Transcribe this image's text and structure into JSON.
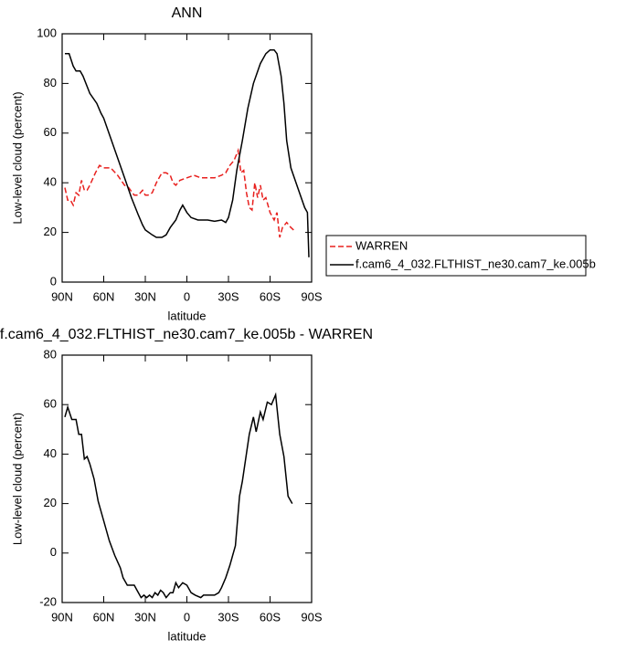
{
  "chart_data": [
    {
      "type": "line",
      "title": "ANN",
      "x_label": "latitude",
      "y_label": "Low-level cloud (percent)",
      "xlim": [
        90,
        -90
      ],
      "ylim": [
        0,
        100
      ],
      "xticks": [
        {
          "value": 90,
          "label": "90N"
        },
        {
          "value": 60,
          "label": "60N"
        },
        {
          "value": 30,
          "label": "30N"
        },
        0,
        {
          "value": -30,
          "label": "30S"
        },
        {
          "value": -60,
          "label": "60S"
        },
        {
          "value": -90,
          "label": "90S"
        }
      ],
      "yticks": [
        0,
        20,
        40,
        60,
        80,
        100
      ],
      "series": [
        {
          "name": "WARREN",
          "color": "#e8201e",
          "dashed": true,
          "x": [
            88,
            86,
            84,
            82,
            80,
            78,
            76,
            74,
            72,
            70,
            66,
            63,
            60,
            55,
            50,
            45,
            42,
            38,
            35,
            32,
            30,
            28,
            25,
            22,
            18,
            15,
            12,
            10,
            8,
            5,
            0,
            -5,
            -10,
            -15,
            -20,
            -25,
            -28,
            -31,
            -34,
            -37,
            -39,
            -41,
            -43,
            -45,
            -47,
            -49,
            -51,
            -53,
            -55,
            -57,
            -60,
            -63,
            -65,
            -67,
            -69,
            -72,
            -75,
            -77
          ],
          "values": [
            38,
            33,
            33,
            31,
            36,
            35,
            41,
            37,
            37,
            39,
            44,
            47,
            46,
            46,
            43,
            39,
            38,
            35,
            35,
            37,
            35,
            35,
            36,
            40,
            44,
            44,
            43,
            40,
            39,
            41,
            42,
            43,
            42,
            42,
            42,
            43,
            44,
            47,
            49,
            53,
            44,
            45,
            36,
            30,
            29,
            40,
            34,
            39,
            33,
            34,
            28,
            25,
            28,
            18,
            22,
            24,
            22,
            21
          ]
        },
        {
          "name": "f.cam6_4_032.FLTHIST_ne30.cam7_ke.005b",
          "color": "#000000",
          "dashed": false,
          "x": [
            88,
            85,
            82,
            80,
            77,
            75,
            70,
            65,
            62,
            60,
            55,
            50,
            45,
            40,
            35,
            32,
            30,
            25,
            22,
            18,
            15,
            12,
            8,
            5,
            3,
            0,
            -3,
            -8,
            -15,
            -20,
            -25,
            -28,
            -30,
            -33,
            -36,
            -40,
            -44,
            -48,
            -53,
            -57,
            -60,
            -63,
            -65,
            -68,
            -70,
            -72,
            -75,
            -80,
            -85,
            -87,
            -88
          ],
          "values": [
            92,
            92,
            87,
            85,
            85,
            83,
            76,
            72,
            68,
            66,
            58,
            50,
            42,
            34,
            27,
            23,
            21,
            19,
            18,
            18,
            19,
            22,
            25,
            29,
            31,
            28,
            26,
            25,
            25,
            24.5,
            25,
            24,
            26,
            33,
            45,
            57,
            70,
            80,
            88,
            92,
            93.5,
            93.5,
            92,
            83,
            72,
            57,
            46,
            38,
            30,
            28,
            10
          ]
        }
      ]
    },
    {
      "type": "line",
      "title": "f.cam6_4_032.FLTHIST_ne30.cam7_ke.005b - WARREN",
      "x_label": "latitude",
      "y_label": "Low-level cloud (percent)",
      "xlim": [
        90,
        -90
      ],
      "ylim": [
        -20,
        80
      ],
      "xticks": [
        {
          "value": 90,
          "label": "90N"
        },
        {
          "value": 60,
          "label": "60N"
        },
        {
          "value": 30,
          "label": "30N"
        },
        0,
        {
          "value": -30,
          "label": "30S"
        },
        {
          "value": -60,
          "label": "60S"
        },
        {
          "value": -90,
          "label": "90S"
        }
      ],
      "yticks": [
        -20,
        0,
        20,
        40,
        60,
        80
      ],
      "color": "#000000",
      "x": [
        88,
        86,
        83,
        80,
        78,
        76,
        74,
        72,
        70,
        67,
        64,
        60,
        56,
        52,
        48,
        46,
        43,
        40,
        38,
        36,
        33,
        31,
        29,
        27,
        25,
        23,
        21,
        19,
        17,
        15,
        12,
        10,
        8,
        6,
        3,
        0,
        -3,
        -6,
        -10,
        -12,
        -15,
        -18,
        -20,
        -23,
        -25,
        -28,
        -31,
        -35,
        -38,
        -40,
        -45,
        -48,
        -50,
        -53,
        -55,
        -58,
        -61,
        -64,
        -67,
        -70,
        -73,
        -76
      ],
      "values": [
        55,
        59,
        54,
        54,
        48,
        48,
        38,
        39,
        36,
        30,
        21,
        13,
        5,
        -1,
        -6,
        -10,
        -13,
        -13,
        -13,
        -15,
        -18,
        -17,
        -18,
        -17,
        -18,
        -16,
        -17,
        -15,
        -16,
        -18,
        -16,
        -16,
        -12,
        -14,
        -12,
        -13,
        -16,
        -17,
        -18,
        -17,
        -17,
        -17,
        -17,
        -16,
        -14,
        -10,
        -5,
        3,
        23,
        29,
        48,
        55,
        49,
        57,
        54,
        61,
        60,
        64,
        48,
        39,
        23,
        20
      ]
    }
  ]
}
